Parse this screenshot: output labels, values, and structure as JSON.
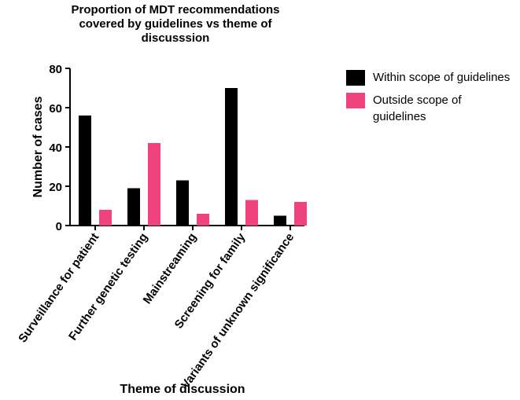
{
  "chart_data": {
    "type": "bar",
    "title": "Proportion of MDT recommendations covered by guidelines vs theme of discusssion",
    "title_lines": [
      "Proportion of MDT recommendations",
      "covered by guidelines vs theme of",
      "discusssion"
    ],
    "xlabel": "Theme of discussion",
    "ylabel": "Number of cases",
    "ylim": [
      0,
      80
    ],
    "yticks": [
      "0",
      "20",
      "40",
      "60",
      "80"
    ],
    "grid": false,
    "legend_position": "right",
    "categories": [
      "Surveillance for patient",
      "Further genetic testing",
      "Mainstreaming",
      "Screening for family",
      "Variants of unknown significance"
    ],
    "series": [
      {
        "name": "Within scope of guidelines",
        "color": "#000000",
        "values": [
          56,
          19,
          23,
          70,
          5
        ]
      },
      {
        "name": "Outside scope of guidelines",
        "color": "#f0427f",
        "values": [
          8,
          42,
          6,
          13,
          12
        ]
      }
    ]
  }
}
